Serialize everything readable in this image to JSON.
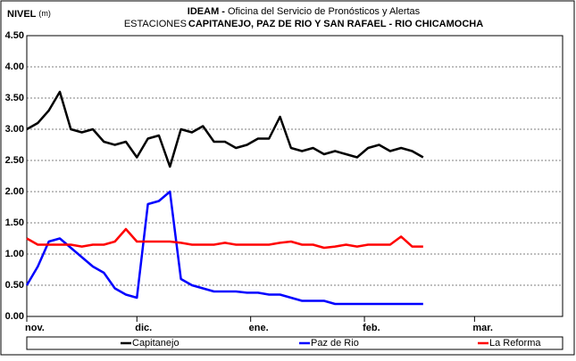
{
  "chart_data": {
    "type": "line",
    "title": [
      "IDEAM -",
      "Oficina del Servicio de Pronósticos y Alertas"
    ],
    "subtitle": [
      "ESTACIONES",
      "CAPITANEJO, PAZ DE RIO Y SAN RAFAEL -  RIO CHICAMOCHA"
    ],
    "ylabel": [
      "NIVEL",
      "(m)"
    ],
    "x": [
      0,
      3,
      6,
      9,
      12,
      15,
      18,
      21,
      24,
      27,
      30,
      33,
      36,
      39,
      42,
      45,
      48,
      51,
      54,
      57,
      60,
      63,
      66,
      69,
      72,
      75,
      78,
      81,
      84,
      87,
      90,
      93,
      96,
      99,
      102,
      105,
      108
    ],
    "xlim": [
      0,
      146
    ],
    "xticks": [
      {
        "value": 0,
        "label": "nov."
      },
      {
        "value": 30,
        "label": "dic."
      },
      {
        "value": 61,
        "label": "ene."
      },
      {
        "value": 92,
        "label": "feb."
      },
      {
        "value": 122,
        "label": "mar."
      }
    ],
    "ylim": [
      0,
      4.5
    ],
    "yticks": [
      {
        "value": 0,
        "label": "0.00"
      },
      {
        "value": 0.5,
        "label": "0.50"
      },
      {
        "value": 1,
        "label": "1.00"
      },
      {
        "value": 1.5,
        "label": "1.50"
      },
      {
        "value": 2,
        "label": "2.00"
      },
      {
        "value": 2.5,
        "label": "2.50"
      },
      {
        "value": 3,
        "label": "3.00"
      },
      {
        "value": 3.5,
        "label": "3.50"
      },
      {
        "value": 4,
        "label": "4.00"
      },
      {
        "value": 4.5,
        "label": "4.50"
      }
    ],
    "grid": true,
    "legend": "bottom",
    "series": [
      {
        "name": "Capitanejo",
        "color": "#000000",
        "values": [
          3.0,
          3.1,
          3.3,
          3.6,
          3.0,
          2.95,
          3.0,
          2.8,
          2.75,
          2.8,
          2.55,
          2.85,
          2.9,
          2.4,
          3.0,
          2.95,
          3.05,
          2.8,
          2.8,
          2.7,
          2.75,
          2.85,
          2.85,
          3.2,
          2.7,
          2.65,
          2.7,
          2.6,
          2.65,
          2.6,
          2.55,
          2.7,
          2.75,
          2.65,
          2.7,
          2.65,
          2.55
        ]
      },
      {
        "name": "Paz de Rio",
        "color": "#0000ff",
        "values": [
          0.5,
          0.8,
          1.2,
          1.25,
          1.1,
          0.95,
          0.8,
          0.7,
          0.45,
          0.35,
          0.3,
          1.8,
          1.85,
          2.0,
          0.6,
          0.5,
          0.45,
          0.4,
          0.4,
          0.4,
          0.38,
          0.38,
          0.35,
          0.35,
          0.3,
          0.25,
          0.25,
          0.25,
          0.2,
          0.2,
          0.2,
          0.2,
          0.2,
          0.2,
          0.2,
          0.2,
          0.2
        ]
      },
      {
        "name": "La Reforma",
        "color": "#ff0000",
        "values": [
          1.25,
          1.15,
          1.15,
          1.15,
          1.15,
          1.12,
          1.15,
          1.15,
          1.2,
          1.4,
          1.2,
          1.2,
          1.2,
          1.2,
          1.18,
          1.15,
          1.15,
          1.15,
          1.18,
          1.15,
          1.15,
          1.15,
          1.15,
          1.18,
          1.2,
          1.15,
          1.15,
          1.1,
          1.12,
          1.15,
          1.12,
          1.15,
          1.15,
          1.15,
          1.28,
          1.12,
          1.12
        ]
      }
    ]
  }
}
